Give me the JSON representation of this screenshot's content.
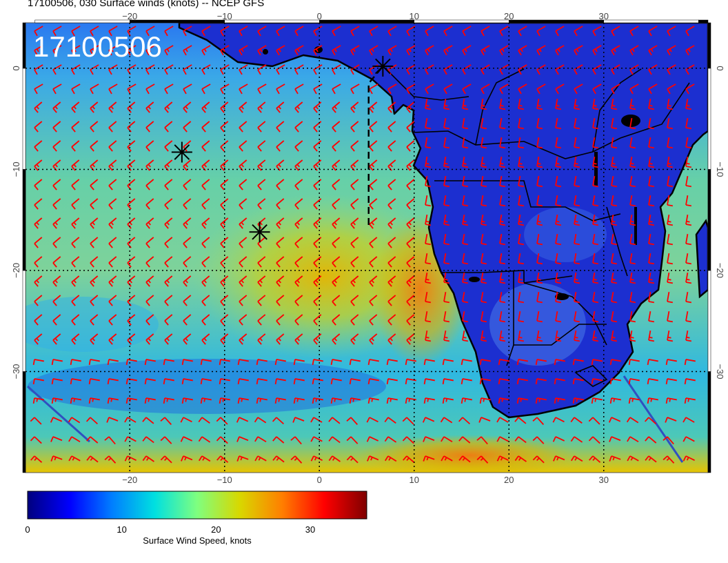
{
  "title": "17100506, 030 Surface winds (knots) -- NCEP GFS",
  "stamp": "17100506",
  "map": {
    "lon_range": [
      -31,
      41
    ],
    "lat_range": [
      -40,
      4.5
    ],
    "lon_ticks": [
      -20,
      -10,
      0,
      10,
      20,
      30
    ],
    "lon_tick_labels": [
      "−20",
      "−10",
      "0",
      "10",
      "20",
      "30"
    ],
    "lat_ticks": [
      0,
      -10,
      -20,
      -30
    ],
    "lat_tick_labels": [
      "0",
      "−10",
      "−20",
      "−30"
    ],
    "gridlines": "dotted",
    "barb_color": "#ff0000",
    "land_color": "#1c2fd0",
    "coast_color": "#000000",
    "markers": [
      {
        "symbol": "asterisk",
        "lon": -14.5,
        "lat": -8.3
      },
      {
        "symbol": "asterisk",
        "lon": -6.3,
        "lat": -16.2
      },
      {
        "symbol": "asterisk",
        "lon": 6.7,
        "lat": 0.2
      }
    ],
    "track": [
      [
        5.2,
        -15.5
      ],
      [
        5.2,
        -1.5
      ],
      [
        6.7,
        0.2
      ]
    ]
  },
  "colorbar": {
    "label": "Surface Wind Speed, knots",
    "range": [
      0,
      36
    ],
    "ticks": [
      0,
      10,
      20,
      30
    ],
    "tick_labels": [
      "0",
      "10",
      "20",
      "30"
    ],
    "colors": [
      "#00007f",
      "#0000ff",
      "#007fff",
      "#00e0e0",
      "#7fff7f",
      "#d8d800",
      "#ff7f00",
      "#ff0000",
      "#7f0000"
    ]
  }
}
